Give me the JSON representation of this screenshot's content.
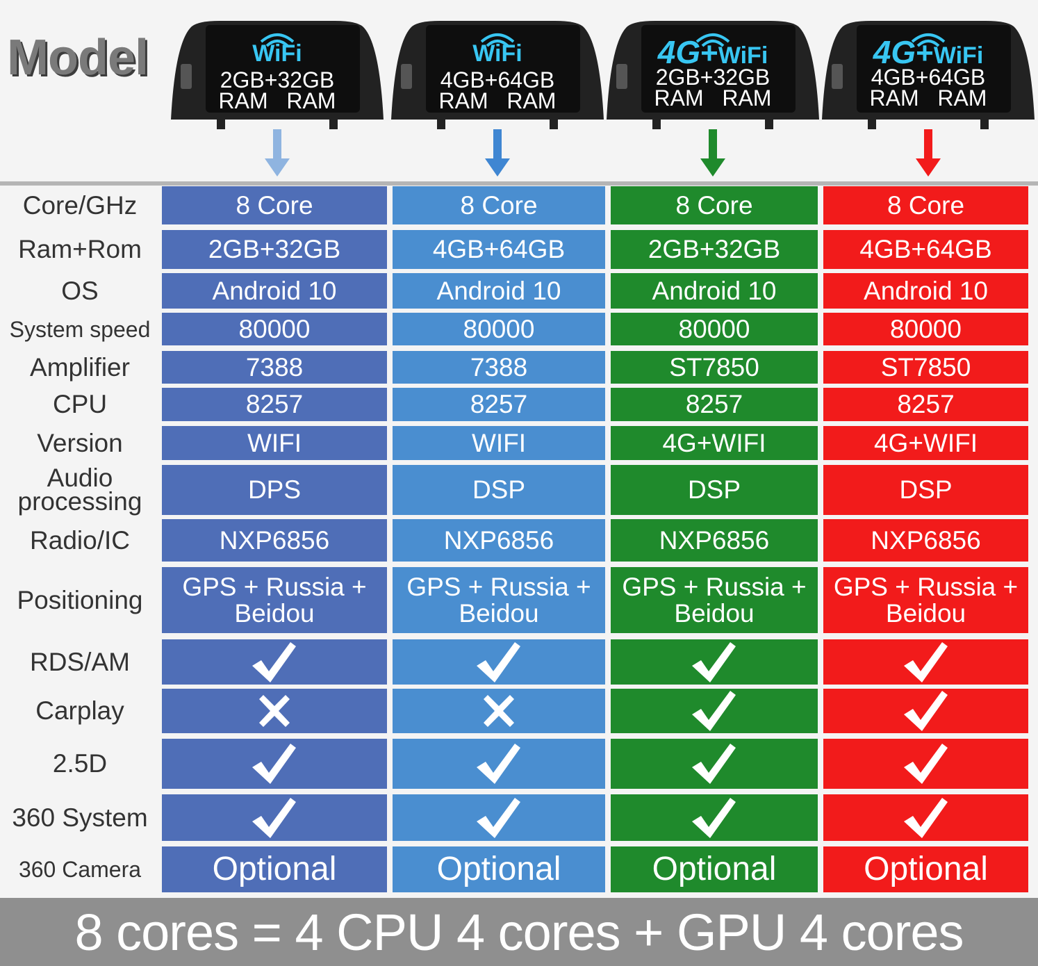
{
  "model_label": "Model",
  "columns": [
    {
      "color": "#4f6eb7",
      "badge": "WiFi",
      "has_4g": false,
      "spec_line1": "2GB+32GB",
      "spec_line2": "RAM   RAM",
      "arrow_color": "#8fb4e0"
    },
    {
      "color": "#4a8ed0",
      "badge": "WiFi",
      "has_4g": false,
      "spec_line1": "4GB+64GB",
      "spec_line2": "RAM   RAM",
      "arrow_color": "#3f86d2"
    },
    {
      "color": "#1f8a2c",
      "badge": "WiFi",
      "has_4g": true,
      "spec_line1": "2GB+32GB",
      "spec_line2": "RAM   RAM",
      "arrow_color": "#1f8a2c"
    },
    {
      "color": "#f21b1b",
      "badge": "WiFi",
      "has_4g": true,
      "spec_line1": "4GB+64GB",
      "spec_line2": "RAM   RAM",
      "arrow_color": "#f21b1b"
    }
  ],
  "badge_4g": "4G",
  "badge_plus": "+",
  "rows": [
    {
      "label": "Core/GHz",
      "values": [
        "8 Core",
        "8 Core",
        "8 Core",
        "8 Core"
      ]
    },
    {
      "label": "Ram+Rom",
      "values": [
        "2GB+32GB",
        "4GB+64GB",
        "2GB+32GB",
        "4GB+64GB"
      ]
    },
    {
      "label": "OS",
      "values": [
        "Android 10",
        "Android 10",
        "Android 10",
        "Android 10"
      ]
    },
    {
      "label": "System speed",
      "values": [
        "80000",
        "80000",
        "80000",
        "80000"
      ]
    },
    {
      "label": "Amplifier",
      "values": [
        "7388",
        "7388",
        "ST7850",
        "ST7850"
      ]
    },
    {
      "label": "CPU",
      "values": [
        "8257",
        "8257",
        "8257",
        "8257"
      ]
    },
    {
      "label": "Version",
      "values": [
        "WIFI",
        "WIFI",
        "4G+WIFI",
        "4G+WIFI"
      ]
    },
    {
      "label": "Audio processing",
      "values": [
        "DPS",
        "DSP",
        "DSP",
        "DSP"
      ]
    },
    {
      "label": "Radio/IC",
      "values": [
        "NXP6856",
        "NXP6856",
        "NXP6856",
        "NXP6856"
      ]
    },
    {
      "label": "Positioning",
      "values": [
        "GPS + Russia + Beidou",
        "GPS + Russia + Beidou",
        "GPS + Russia + Beidou",
        "GPS + Russia + Beidou"
      ]
    },
    {
      "label": "RDS/AM",
      "values": [
        "check-icon",
        "check-icon",
        "check-icon",
        "check-icon"
      ]
    },
    {
      "label": "Carplay",
      "values": [
        "cross-icon",
        "cross-icon",
        "check-icon",
        "check-icon"
      ]
    },
    {
      "label": "2.5D",
      "values": [
        "check-icon",
        "check-icon",
        "check-icon",
        "check-icon"
      ]
    },
    {
      "label": "360 System",
      "values": [
        "check-icon",
        "check-icon",
        "check-icon",
        "check-icon"
      ]
    },
    {
      "label": "360 Camera",
      "values": [
        "Optional",
        "Optional",
        "Optional",
        "Optional"
      ]
    }
  ],
  "footer": "8 cores = 4 CPU 4 cores + GPU 4 cores"
}
